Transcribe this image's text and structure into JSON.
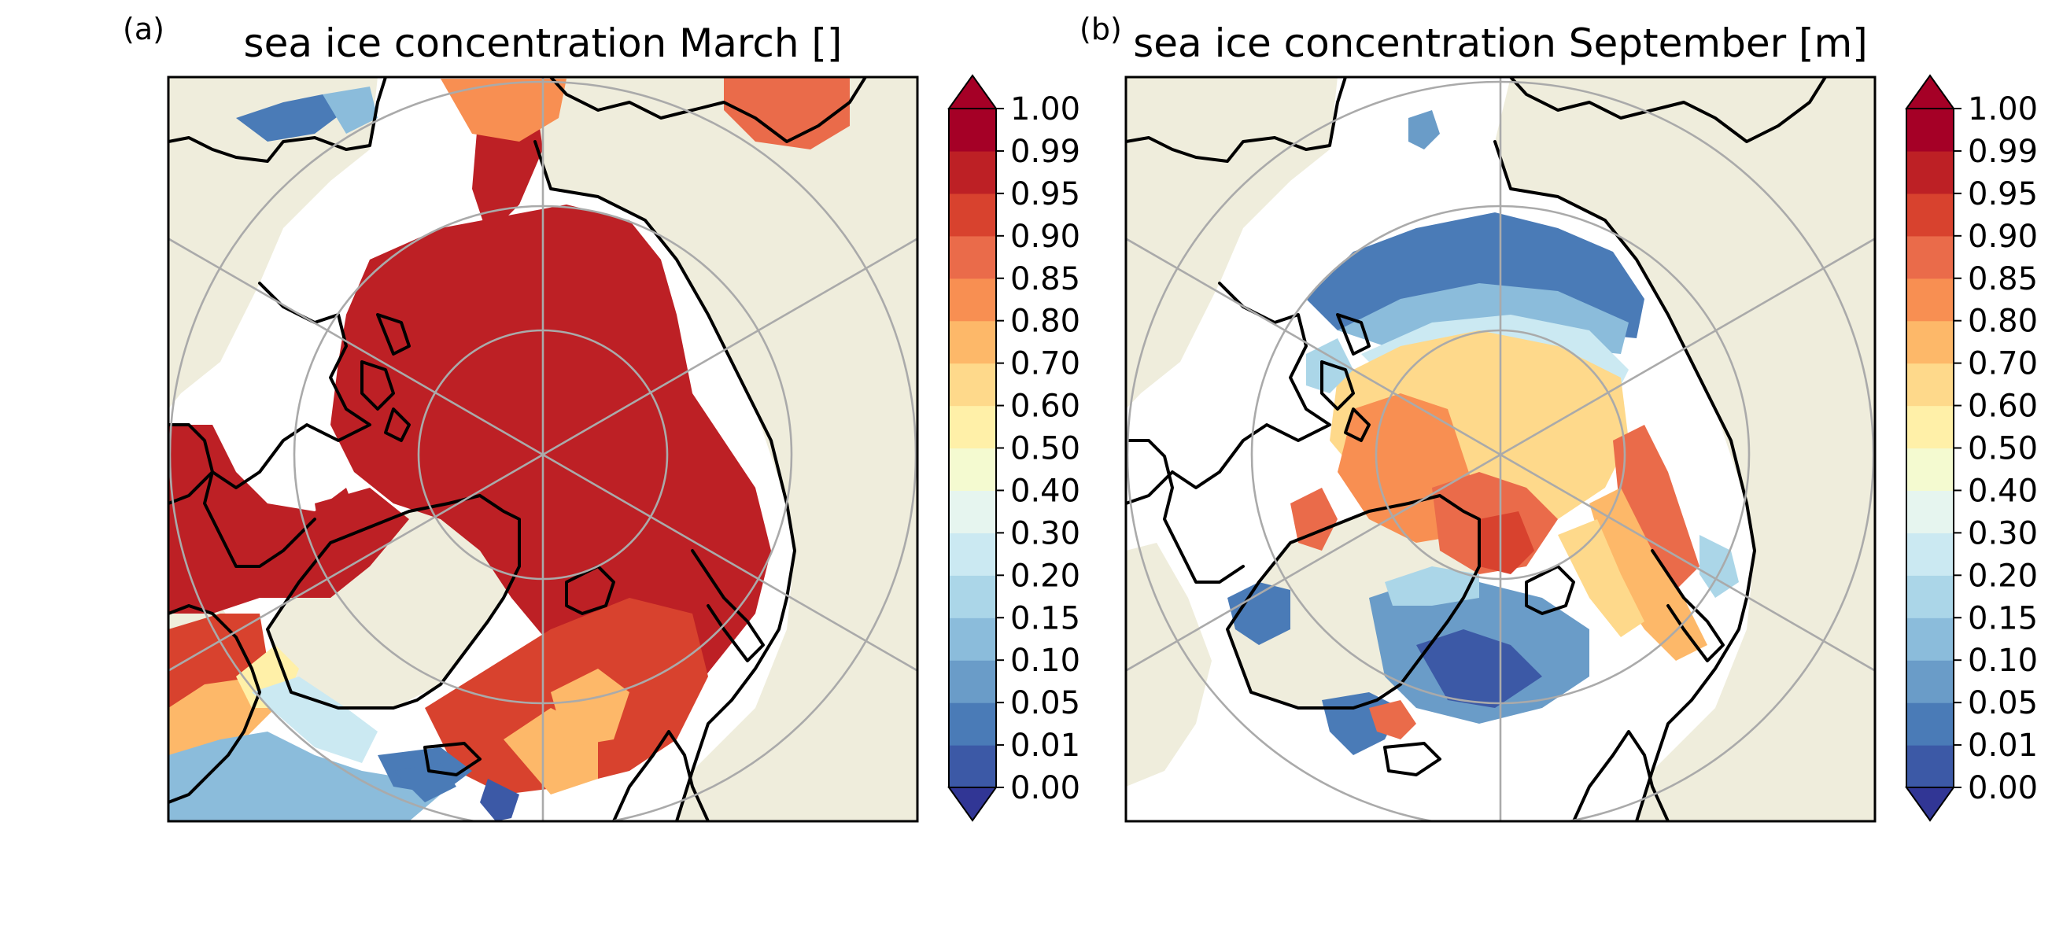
{
  "figure": {
    "panels": [
      {
        "letter": "(a)",
        "title": "sea ice concentration March []"
      },
      {
        "letter": "(b)",
        "title": "sea ice concentration September [m]"
      }
    ]
  },
  "colorbar": {
    "ticks": [
      "0.00",
      "0.01",
      "0.05",
      "0.10",
      "0.15",
      "0.20",
      "0.30",
      "0.40",
      "0.50",
      "0.60",
      "0.70",
      "0.80",
      "0.85",
      "0.90",
      "0.95",
      "0.99",
      "1.00"
    ],
    "colors": [
      "#313695",
      "#3c59a6",
      "#4a7bb7",
      "#6a9cc8",
      "#8bbcdb",
      "#abd6e8",
      "#cbe9f2",
      "#e6f5ef",
      "#f4fad0",
      "#fff0a8",
      "#fed98b",
      "#fdb869",
      "#f88f52",
      "#ea6b4a",
      "#d8422e",
      "#bd2025",
      "#a50026"
    ],
    "extend_under_color": "#313695",
    "extend_over_color": "#a50026"
  },
  "map": {
    "projection": "north polar stereographic",
    "land_color": "#efeddc",
    "gridline_color": "#aaaaaa"
  }
}
